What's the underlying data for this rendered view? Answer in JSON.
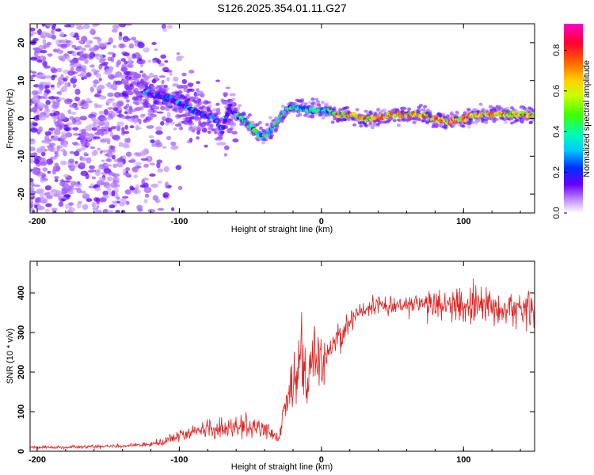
{
  "title": "S126.2025.354.01.11.G27",
  "chart_data": [
    {
      "type": "heatmap",
      "xlabel": "Height of straight line (km)",
      "ylabel": "Frequency (Hz)",
      "xlim": [
        -205,
        150
      ],
      "ylim": [
        -25,
        25
      ],
      "xticks": [
        -200,
        -100,
        0,
        100
      ],
      "yticks": [
        -20,
        -10,
        0,
        10,
        20
      ],
      "ridge": {
        "x": [
          -125,
          -115,
          -105,
          -95,
          -85,
          -75,
          -70,
          -65,
          -60,
          -55,
          -50,
          -45,
          -40,
          -35,
          -30,
          -25,
          -20,
          -15,
          -10,
          -5,
          0,
          5,
          10,
          20,
          30,
          40,
          50,
          60,
          70,
          80,
          90,
          100,
          110,
          120,
          130,
          140,
          150
        ],
        "frequency": [
          7,
          6,
          5,
          3,
          1,
          0,
          -3,
          2,
          1,
          0,
          -2,
          -4,
          -5,
          -3,
          0,
          2,
          3,
          3,
          2,
          2,
          2,
          2,
          1,
          1,
          0,
          0,
          1,
          1,
          1,
          0,
          -1,
          0,
          1,
          1,
          1,
          1,
          1
        ]
      },
      "colorbar": {
        "label": "Normalized spectral amplitude",
        "range": [
          0,
          0.93
        ],
        "ticks": [
          0.0,
          0.2,
          0.4,
          0.6,
          0.8
        ],
        "tick_labels": [
          "0.0",
          "0.2",
          "0.4",
          "0.6",
          "0.8"
        ]
      }
    },
    {
      "type": "line",
      "xlabel": "Height of straight line (km)",
      "ylabel": "SNR (10 * v/v)",
      "xlim": [
        -205,
        150
      ],
      "ylim": [
        0,
        480
      ],
      "xticks": [
        -200,
        -100,
        0,
        100
      ],
      "yticks": [
        0,
        100,
        200,
        300,
        400
      ],
      "series": [
        {
          "name": "SNR",
          "color": "#e02020",
          "x": [
            -205,
            -180,
            -160,
            -140,
            -120,
            -110,
            -100,
            -90,
            -80,
            -70,
            -60,
            -50,
            -40,
            -30,
            -25,
            -20,
            -15,
            -10,
            -5,
            0,
            5,
            10,
            20,
            30,
            40,
            60,
            80,
            100,
            120,
            140,
            150
          ],
          "mean": [
            10,
            10,
            12,
            13,
            18,
            25,
            40,
            50,
            55,
            55,
            60,
            60,
            60,
            30,
            120,
            150,
            230,
            160,
            260,
            220,
            250,
            280,
            330,
            360,
            370,
            370,
            370,
            370,
            365,
            360,
            360
          ],
          "spread": [
            6,
            6,
            7,
            7,
            9,
            14,
            25,
            30,
            40,
            45,
            45,
            40,
            45,
            30,
            80,
            120,
            210,
            110,
            130,
            100,
            80,
            60,
            50,
            40,
            35,
            40,
            60,
            70,
            80,
            80,
            80
          ]
        }
      ]
    }
  ]
}
